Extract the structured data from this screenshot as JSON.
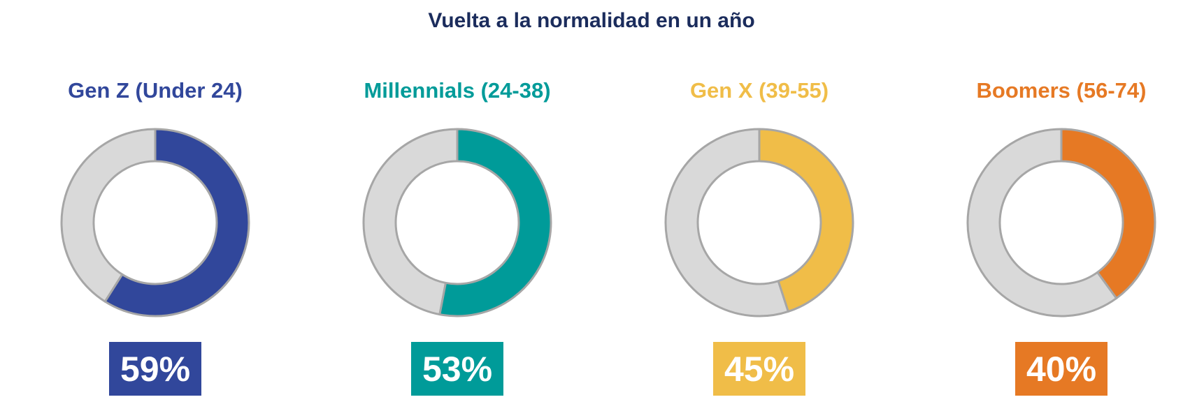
{
  "title": "Vuelta a la normalidad en un año",
  "chart_data": {
    "type": "donut",
    "title": "Vuelta a la normalidad en un año",
    "remainder_color": "#d9d9d9",
    "outline_color": "#a6a6a6",
    "series": [
      {
        "name": "Gen Z (Under 24)",
        "value": 59,
        "label": "59%",
        "color": "#31479b"
      },
      {
        "name": "Millennials (24-38)",
        "value": 53,
        "label": "53%",
        "color": "#009b99"
      },
      {
        "name": "Gen X (39-55)",
        "value": 45,
        "label": "45%",
        "color": "#f0bd48"
      },
      {
        "name": "Boomers (56-74)",
        "value": 40,
        "label": "40%",
        "color": "#e67924"
      }
    ]
  }
}
